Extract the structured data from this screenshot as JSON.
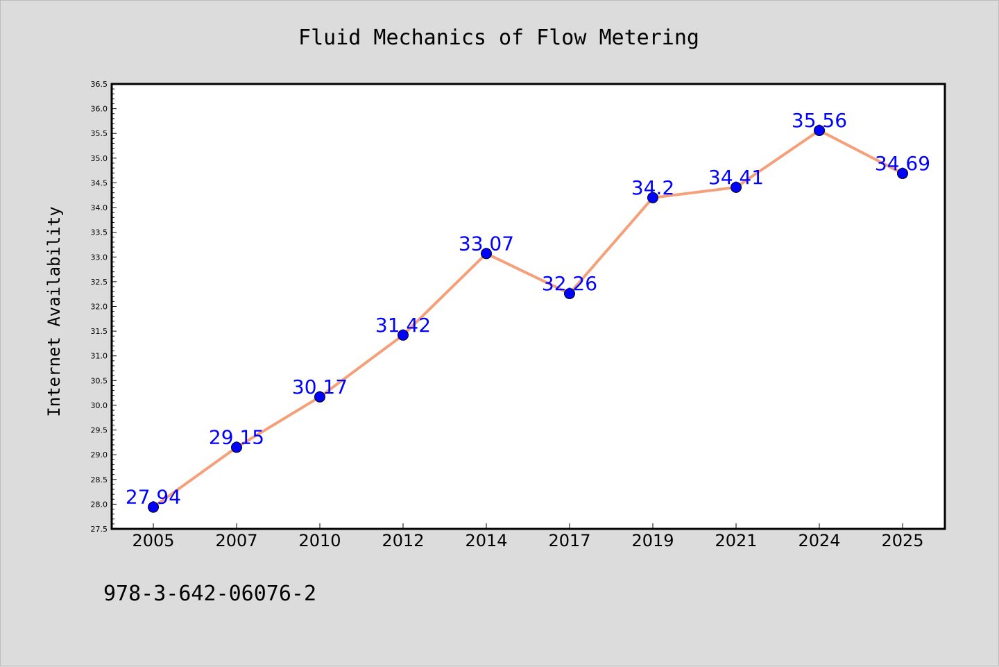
{
  "colors": {
    "background": "#dcdcdc",
    "plot_area": "#ffffff",
    "line": "#f4a07a",
    "marker": "#0000ff",
    "data_label": "#0000ff"
  },
  "footnote": "978-3-642-06076-2",
  "chart_data": {
    "type": "line",
    "title": "Fluid Mechanics of Flow Metering",
    "xlabel": "",
    "ylabel": "Internet Availability",
    "categories": [
      "2005",
      "2007",
      "2010",
      "2012",
      "2014",
      "2017",
      "2019",
      "2021",
      "2024",
      "2025"
    ],
    "series": [
      {
        "values": [
          27.94,
          29.15,
          30.17,
          31.42,
          33.07,
          32.26,
          34.2,
          34.41,
          35.56,
          34.69
        ],
        "data_labels": [
          "27.94",
          "29.15",
          "30.17",
          "31.42",
          "33.07",
          "32.26",
          "34.2",
          "34.41",
          "35.56",
          "34.69"
        ]
      }
    ],
    "ylim": [
      27.5,
      36.5
    ],
    "yticks": [
      "27.5",
      "28.0",
      "28.5",
      "29.0",
      "29.5",
      "30.0",
      "30.5",
      "31.0",
      "31.5",
      "32.0",
      "32.5",
      "33.0",
      "33.5",
      "34.0",
      "34.5",
      "35.0",
      "35.5",
      "36.0",
      "36.5"
    ],
    "grid": false,
    "legend": "none"
  }
}
